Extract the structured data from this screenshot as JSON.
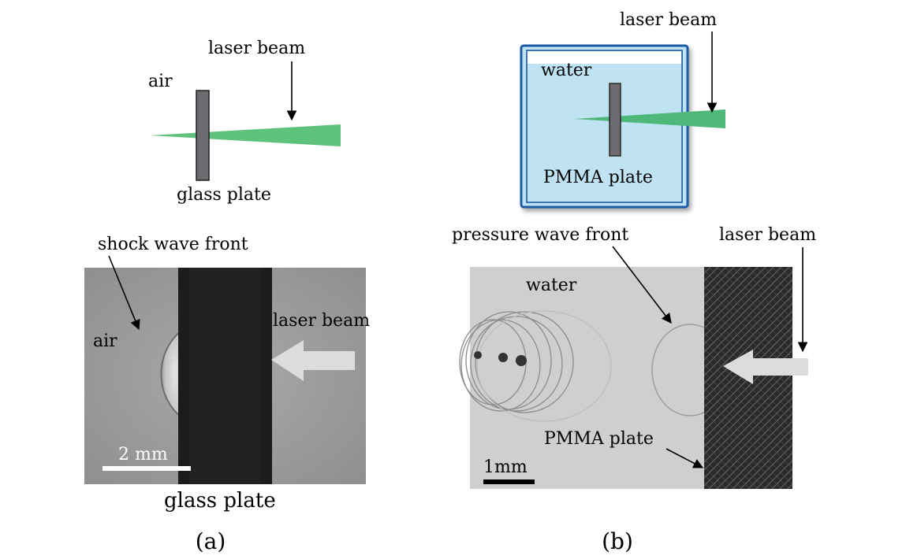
{
  "panel_a": {
    "schematic": {
      "medium_label": "air",
      "beam_label": "laser beam",
      "plate_label": "glass plate",
      "colors": {
        "plate": "#6d6b70",
        "beam": "#5ec27d"
      }
    },
    "photo": {
      "front_label": "shock wave front",
      "medium_label": "air",
      "beam_label": "laser beam",
      "scale_label": "2 mm",
      "plate_label": "glass plate"
    },
    "caption": "(a)"
  },
  "panel_b": {
    "schematic": {
      "medium_label": "water",
      "beam_label": "laser beam",
      "plate_label": "PMMA plate",
      "colors": {
        "water": "#bfe3f3",
        "tank_border": "#1f5aa6",
        "plate": "#6d6b70",
        "beam": "#4db87a"
      }
    },
    "photo": {
      "front_label": "pressure wave front",
      "beam_label": "laser beam",
      "medium_label": "water",
      "plate_label": "PMMA plate",
      "scale_label": "1mm"
    },
    "caption": "(b)"
  }
}
